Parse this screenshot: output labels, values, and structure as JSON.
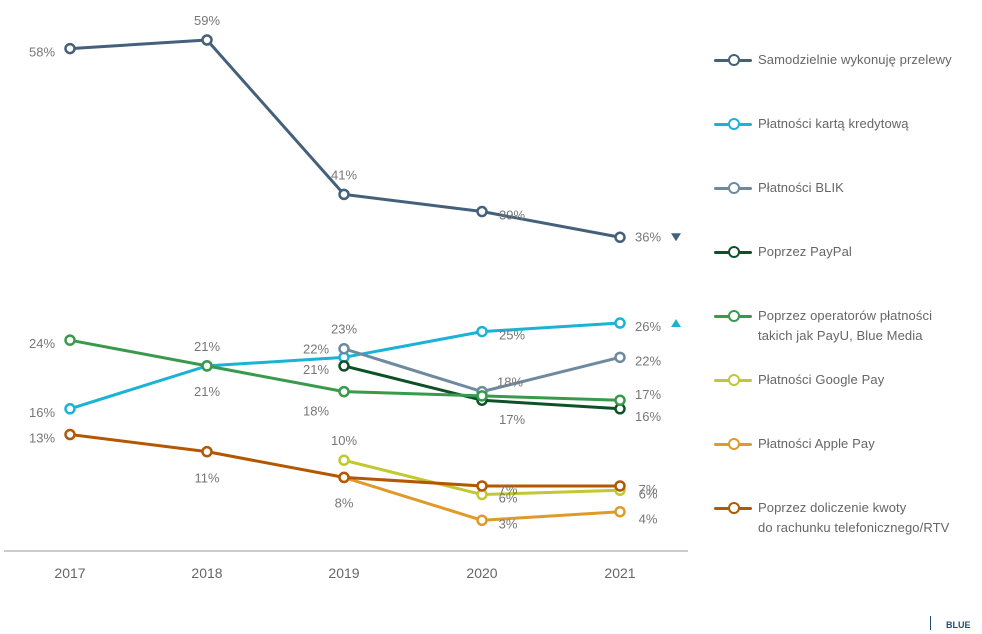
{
  "chart_data": {
    "type": "line",
    "categories": [
      "2017",
      "2018",
      "2019",
      "2020",
      "2021"
    ],
    "ylim": [
      0,
      65
    ],
    "grid": false,
    "legend_position": "right",
    "series": [
      {
        "name": "Samodzielnie wykonuję przelewy",
        "color": "#44607a",
        "values": [
          58,
          59,
          41,
          39,
          36
        ],
        "labels": [
          "58%",
          "59%",
          "41%",
          "39%",
          "36%"
        ],
        "trend": "down"
      },
      {
        "name": "Płatności kartą kredytową",
        "color": "#1ab3d6",
        "values": [
          16,
          21,
          22,
          25,
          26
        ],
        "labels": [
          "16%",
          "21%",
          "22%",
          "25%",
          "26%"
        ],
        "trend": "up"
      },
      {
        "name": "Płatności BLIK",
        "color": "#6e8aa0",
        "values": [
          null,
          null,
          23,
          18,
          22
        ],
        "labels": [
          null,
          null,
          "23%",
          "18%",
          "22%"
        ]
      },
      {
        "name": "Poprzez PayPal",
        "color": "#0d5128",
        "values": [
          null,
          null,
          21,
          17,
          16
        ],
        "labels": [
          null,
          null,
          "21%",
          "17%",
          "16%"
        ]
      },
      {
        "name": "Poprzez operatorów płatności\ntakich jak PayU, Blue Media",
        "color": "#3a9a4c",
        "values": [
          24,
          21,
          18,
          17.5,
          17
        ],
        "labels": [
          "24%",
          "21%",
          "18%",
          null,
          "17%"
        ]
      },
      {
        "name": "Płatności Google Pay",
        "color": "#c0c832",
        "values": [
          null,
          null,
          10,
          6,
          6.5
        ],
        "labels": [
          null,
          null,
          "10%",
          "6%",
          "6%"
        ]
      },
      {
        "name": "Płatności Apple Pay",
        "color": "#df9a2a",
        "values": [
          null,
          null,
          8,
          3,
          4
        ],
        "labels": [
          null,
          null,
          null,
          "3%",
          "4%"
        ]
      },
      {
        "name": "Poprzez doliczenie kwoty\ndo rachunku telefonicznego/RTV",
        "color": "#b35700",
        "values": [
          13,
          11,
          8,
          7,
          7
        ],
        "labels": [
          "13%",
          "11%",
          "8%",
          "7%",
          "7%"
        ]
      }
    ]
  },
  "brand": {
    "logo_text": "BLUE"
  }
}
